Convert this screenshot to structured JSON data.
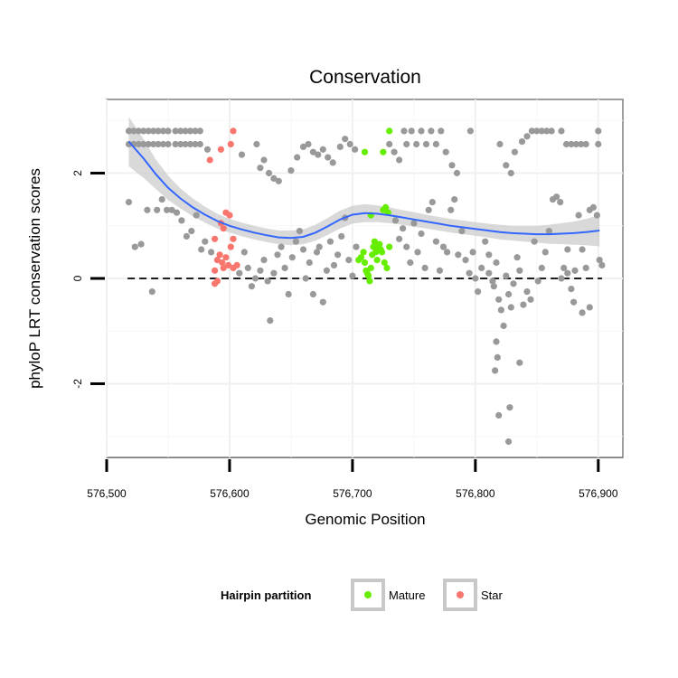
{
  "chart_data": {
    "type": "scatter",
    "title": "Conservation",
    "xlabel": "Genomic Position",
    "ylabel": "phyloP LRT conservation scores",
    "xlim": [
      576500,
      576920
    ],
    "ylim": [
      -3.4,
      3.4
    ],
    "x_ticks": [
      576500,
      576600,
      576700,
      576800,
      576900
    ],
    "x_tick_labels": [
      "576,500",
      "576,600",
      "576,700",
      "576,800",
      "576,900"
    ],
    "y_ticks": [
      -2,
      0,
      2
    ],
    "y_tick_labels": [
      "-2",
      "0",
      "2"
    ],
    "grid": true,
    "reference_line": {
      "y": 0,
      "style": "dashed"
    },
    "colors": {
      "other": "#999999",
      "Mature": "#66ee00",
      "Star": "#f8766d",
      "smooth": "#3366ff",
      "ribbon": "#cccccc"
    },
    "legend": {
      "title": "Hairpin partition",
      "position": "bottom",
      "entries": [
        "Mature",
        "Star"
      ]
    },
    "series": [
      {
        "name": "Mature",
        "points": [
          [
            576705,
            0.35
          ],
          [
            576707,
            0.4
          ],
          [
            576709,
            0.5
          ],
          [
            576710,
            0.3
          ],
          [
            576711,
            0.15
          ],
          [
            576712,
            0.1
          ],
          [
            576713,
            0.05
          ],
          [
            576714,
            -0.05
          ],
          [
            576715,
            0.2
          ],
          [
            576716,
            0.45
          ],
          [
            576717,
            0.6
          ],
          [
            576718,
            0.7
          ],
          [
            576719,
            0.5
          ],
          [
            576720,
            0.35
          ],
          [
            576721,
            0.6
          ],
          [
            576722,
            0.65
          ],
          [
            576723,
            0.55
          ],
          [
            576724,
            0.5
          ],
          [
            576726,
            0.3
          ],
          [
            576728,
            0.2
          ],
          [
            576730,
            0.6
          ],
          [
            576715,
            1.2
          ],
          [
            576725,
            1.3
          ],
          [
            576727,
            1.35
          ],
          [
            576710,
            2.4
          ],
          [
            576725,
            2.4
          ],
          [
            576730,
            2.8
          ],
          [
            576729,
            1.25
          ]
        ]
      },
      {
        "name": "Star",
        "points": [
          [
            576584,
            2.25
          ],
          [
            576593,
            2.45
          ],
          [
            576601,
            2.55
          ],
          [
            576603,
            2.8
          ],
          [
            576597,
            1.25
          ],
          [
            576600,
            1.2
          ],
          [
            576593,
            1.05
          ],
          [
            576595,
            0.95
          ],
          [
            576588,
            0.75
          ],
          [
            576603,
            0.75
          ],
          [
            576601,
            0.6
          ],
          [
            576592,
            0.45
          ],
          [
            576590,
            0.35
          ],
          [
            576597,
            0.4
          ],
          [
            576599,
            0.25
          ],
          [
            576595,
            0.2
          ],
          [
            576603,
            0.2
          ],
          [
            576588,
            0.15
          ],
          [
            576590,
            -0.05
          ],
          [
            576588,
            -0.1
          ],
          [
            576594,
            0.3
          ],
          [
            576606,
            0.25
          ]
        ]
      },
      {
        "points": [
          [
            576518,
            2.8
          ],
          [
            576522,
            2.8
          ],
          [
            576526,
            2.8
          ],
          [
            576530,
            2.8
          ],
          [
            576534,
            2.8
          ],
          [
            576538,
            2.8
          ],
          [
            576542,
            2.8
          ],
          [
            576546,
            2.8
          ],
          [
            576550,
            2.8
          ],
          [
            576556,
            2.8
          ],
          [
            576560,
            2.8
          ],
          [
            576564,
            2.8
          ],
          [
            576568,
            2.8
          ],
          [
            576572,
            2.8
          ],
          [
            576576,
            2.8
          ],
          [
            576518,
            2.55
          ],
          [
            576522,
            2.55
          ],
          [
            576526,
            2.55
          ],
          [
            576530,
            2.55
          ],
          [
            576534,
            2.55
          ],
          [
            576538,
            2.55
          ],
          [
            576542,
            2.55
          ],
          [
            576546,
            2.55
          ],
          [
            576550,
            2.55
          ],
          [
            576556,
            2.55
          ],
          [
            576560,
            2.55
          ],
          [
            576564,
            2.55
          ],
          [
            576568,
            2.55
          ],
          [
            576572,
            2.55
          ],
          [
            576576,
            2.55
          ],
          [
            576582,
            2.45
          ],
          [
            576610,
            2.35
          ],
          [
            576622,
            2.55
          ],
          [
            576625,
            2.1
          ],
          [
            576628,
            2.25
          ],
          [
            576632,
            2.0
          ],
          [
            576636,
            1.9
          ],
          [
            576640,
            1.85
          ],
          [
            576650,
            2.05
          ],
          [
            576655,
            2.3
          ],
          [
            576660,
            2.5
          ],
          [
            576664,
            2.55
          ],
          [
            576668,
            2.4
          ],
          [
            576672,
            2.35
          ],
          [
            576676,
            2.45
          ],
          [
            576680,
            2.3
          ],
          [
            576684,
            2.2
          ],
          [
            576690,
            2.5
          ],
          [
            576694,
            2.65
          ],
          [
            576698,
            2.55
          ],
          [
            576702,
            2.45
          ],
          [
            576730,
            2.55
          ],
          [
            576734,
            2.4
          ],
          [
            576738,
            2.25
          ],
          [
            576742,
            2.8
          ],
          [
            576744,
            2.55
          ],
          [
            576748,
            2.8
          ],
          [
            576752,
            2.55
          ],
          [
            576756,
            2.8
          ],
          [
            576760,
            2.55
          ],
          [
            576764,
            2.8
          ],
          [
            576768,
            2.55
          ],
          [
            576772,
            2.8
          ],
          [
            576776,
            2.4
          ],
          [
            576781,
            2.15
          ],
          [
            576785,
            2.0
          ],
          [
            576796,
            2.8
          ],
          [
            576820,
            2.55
          ],
          [
            576825,
            2.15
          ],
          [
            576829,
            2.0
          ],
          [
            576832,
            2.4
          ],
          [
            576838,
            2.6
          ],
          [
            576842,
            2.7
          ],
          [
            576846,
            2.8
          ],
          [
            576850,
            2.8
          ],
          [
            576854,
            2.8
          ],
          [
            576858,
            2.8
          ],
          [
            576862,
            2.8
          ],
          [
            576870,
            2.8
          ],
          [
            576874,
            2.55
          ],
          [
            576878,
            2.55
          ],
          [
            576882,
            2.55
          ],
          [
            576886,
            2.55
          ],
          [
            576890,
            2.55
          ],
          [
            576900,
            2.8
          ],
          [
            576900,
            2.55
          ],
          [
            576518,
            1.45
          ],
          [
            576523,
            0.6
          ],
          [
            576528,
            0.65
          ],
          [
            576533,
            1.3
          ],
          [
            576537,
            -0.25
          ],
          [
            576541,
            1.3
          ],
          [
            576545,
            1.5
          ],
          [
            576549,
            1.3
          ],
          [
            576553,
            1.3
          ],
          [
            576557,
            1.25
          ],
          [
            576561,
            1.1
          ],
          [
            576565,
            0.8
          ],
          [
            576569,
            0.9
          ],
          [
            576573,
            1.2
          ],
          [
            576577,
            0.55
          ],
          [
            576580,
            0.7
          ],
          [
            576585,
            0.5
          ],
          [
            576608,
            0.1
          ],
          [
            576612,
            0.5
          ],
          [
            576615,
            0.2
          ],
          [
            576618,
            -0.15
          ],
          [
            576621,
            0.0
          ],
          [
            576625,
            0.15
          ],
          [
            576628,
            0.35
          ],
          [
            576631,
            -0.05
          ],
          [
            576633,
            -0.8
          ],
          [
            576636,
            0.1
          ],
          [
            576639,
            0.45
          ],
          [
            576642,
            0.6
          ],
          [
            576645,
            0.2
          ],
          [
            576648,
            -0.3
          ],
          [
            576651,
            0.4
          ],
          [
            576654,
            0.7
          ],
          [
            576657,
            0.9
          ],
          [
            576660,
            0.55
          ],
          [
            576662,
            0.0
          ],
          [
            576665,
            0.3
          ],
          [
            576668,
            -0.3
          ],
          [
            576671,
            0.5
          ],
          [
            576673,
            0.6
          ],
          [
            576676,
            -0.45
          ],
          [
            576679,
            0.15
          ],
          [
            576682,
            0.7
          ],
          [
            576685,
            0.25
          ],
          [
            576688,
            0.45
          ],
          [
            576691,
            0.8
          ],
          [
            576694,
            1.15
          ],
          [
            576697,
            0.35
          ],
          [
            576700,
            0.05
          ],
          [
            576703,
            0.6
          ],
          [
            576735,
            1.1
          ],
          [
            576738,
            0.75
          ],
          [
            576741,
            0.95
          ],
          [
            576744,
            0.6
          ],
          [
            576747,
            0.3
          ],
          [
            576750,
            1.05
          ],
          [
            576753,
            0.5
          ],
          [
            576756,
            0.85
          ],
          [
            576759,
            0.2
          ],
          [
            576762,
            1.3
          ],
          [
            576765,
            1.45
          ],
          [
            576768,
            0.7
          ],
          [
            576771,
            0.15
          ],
          [
            576774,
            0.6
          ],
          [
            576777,
            0.5
          ],
          [
            576780,
            1.3
          ],
          [
            576783,
            1.5
          ],
          [
            576786,
            0.45
          ],
          [
            576789,
            0.9
          ],
          [
            576792,
            0.35
          ],
          [
            576795,
            0.1
          ],
          [
            576798,
            0.5
          ],
          [
            576800,
            0.0
          ],
          [
            576802,
            -0.25
          ],
          [
            576805,
            0.2
          ],
          [
            576808,
            0.7
          ],
          [
            576811,
            0.45
          ],
          [
            576814,
            -0.05
          ],
          [
            576817,
            0.3
          ],
          [
            576819,
            -0.4
          ],
          [
            576821,
            -0.6
          ],
          [
            576823,
            -0.9
          ],
          [
            576825,
            0.05
          ],
          [
            576827,
            -0.3
          ],
          [
            576829,
            -0.55
          ],
          [
            576831,
            -0.1
          ],
          [
            576834,
            0.4
          ],
          [
            576836,
            0.15
          ],
          [
            576839,
            -0.5
          ],
          [
            576842,
            -0.25
          ],
          [
            576845,
            -0.4
          ],
          [
            576848,
            0.7
          ],
          [
            576851,
            -0.05
          ],
          [
            576854,
            0.2
          ],
          [
            576857,
            0.5
          ],
          [
            576860,
            0.9
          ],
          [
            576863,
            1.5
          ],
          [
            576866,
            1.55
          ],
          [
            576869,
            1.45
          ],
          [
            576872,
            0.2
          ],
          [
            576875,
            0.1
          ],
          [
            576878,
            -0.2
          ],
          [
            576881,
            0.15
          ],
          [
            576884,
            1.2
          ],
          [
            576887,
            0.55
          ],
          [
            576890,
            0.2
          ],
          [
            576893,
            1.3
          ],
          [
            576896,
            1.35
          ],
          [
            576899,
            1.2
          ],
          [
            576901,
            0.35
          ],
          [
            576903,
            0.25
          ],
          [
            576817,
            -1.2
          ],
          [
            576818,
            -1.5
          ],
          [
            576816,
            -1.75
          ],
          [
            576836,
            -1.6
          ],
          [
            576828,
            -2.45
          ],
          [
            576819,
            -2.6
          ],
          [
            576827,
            -3.1
          ],
          [
            576815,
            -0.15
          ],
          [
            576811,
            0.1
          ],
          [
            576887,
            -0.65
          ],
          [
            576893,
            -0.55
          ],
          [
            576880,
            -0.45
          ],
          [
            576875,
            0.55
          ],
          [
            576870,
            0.0
          ]
        ]
      }
    ],
    "smooth_line": [
      [
        576518,
        2.6
      ],
      [
        576530,
        2.28
      ],
      [
        576540,
        1.98
      ],
      [
        576550,
        1.72
      ],
      [
        576560,
        1.52
      ],
      [
        576570,
        1.35
      ],
      [
        576580,
        1.21
      ],
      [
        576590,
        1.09
      ],
      [
        576600,
        1.0
      ],
      [
        576610,
        0.93
      ],
      [
        576620,
        0.87
      ],
      [
        576630,
        0.82
      ],
      [
        576640,
        0.78
      ],
      [
        576650,
        0.77
      ],
      [
        576660,
        0.79
      ],
      [
        576670,
        0.87
      ],
      [
        576680,
        0.99
      ],
      [
        576690,
        1.12
      ],
      [
        576700,
        1.21
      ],
      [
        576710,
        1.24
      ],
      [
        576720,
        1.23
      ],
      [
        576730,
        1.2
      ],
      [
        576740,
        1.16
      ],
      [
        576750,
        1.12
      ],
      [
        576760,
        1.08
      ],
      [
        576770,
        1.04
      ],
      [
        576780,
        1.0
      ],
      [
        576790,
        0.97
      ],
      [
        576800,
        0.94
      ],
      [
        576810,
        0.91
      ],
      [
        576820,
        0.88
      ],
      [
        576830,
        0.86
      ],
      [
        576840,
        0.85
      ],
      [
        576850,
        0.84
      ],
      [
        576860,
        0.84
      ],
      [
        576870,
        0.85
      ],
      [
        576880,
        0.86
      ],
      [
        576890,
        0.88
      ],
      [
        576901,
        0.91
      ]
    ],
    "ribbon_halfwidth": [
      0.47,
      0.37,
      0.28,
      0.23,
      0.19,
      0.17,
      0.15,
      0.14,
      0.13,
      0.13,
      0.13,
      0.13,
      0.13,
      0.14,
      0.14,
      0.15,
      0.16,
      0.17,
      0.17,
      0.17,
      0.16,
      0.15,
      0.14,
      0.14,
      0.13,
      0.13,
      0.13,
      0.13,
      0.13,
      0.13,
      0.14,
      0.14,
      0.15,
      0.16,
      0.18,
      0.2,
      0.22,
      0.25,
      0.3
    ]
  }
}
